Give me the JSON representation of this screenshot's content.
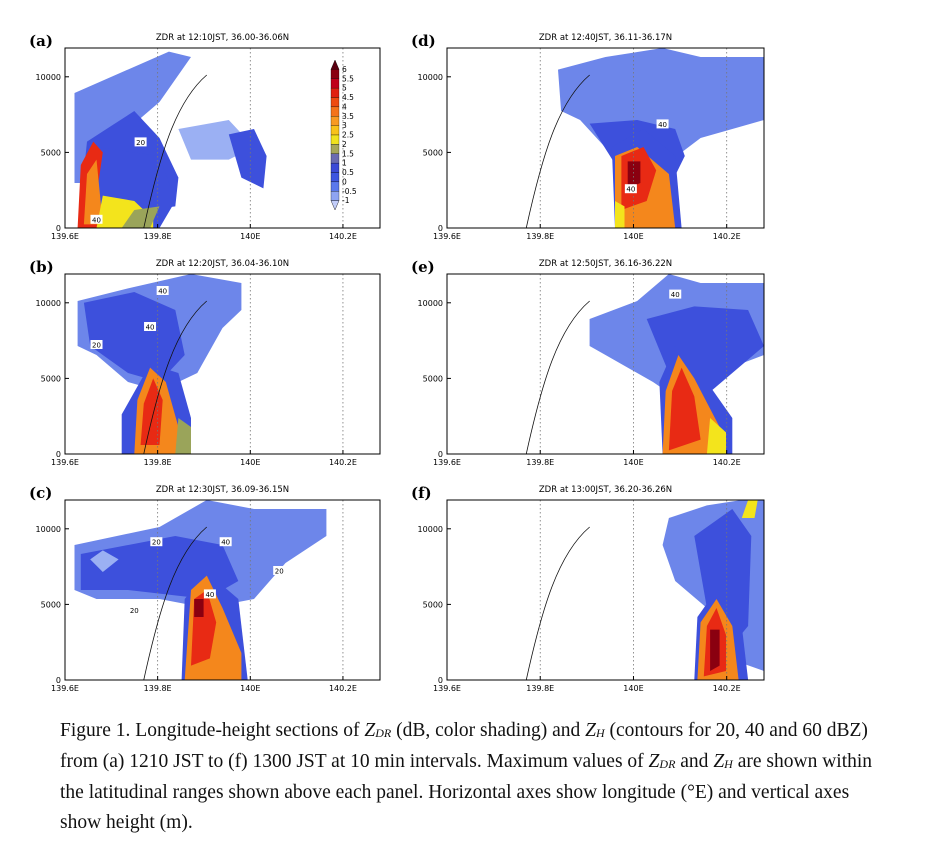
{
  "figure": {
    "panels": [
      {
        "label": "(a)",
        "title": "ZDR at 12:10JST, 36.00-36.06N",
        "contour_labels": [
          "20",
          "40"
        ]
      },
      {
        "label": "(b)",
        "title": "ZDR at 12:20JST, 36.04-36.10N",
        "contour_labels": [
          "40",
          "40",
          "20"
        ]
      },
      {
        "label": "(c)",
        "title": "ZDR at 12:30JST, 36.09-36.15N",
        "contour_labels": [
          "20",
          "40",
          "20",
          "20",
          "40"
        ]
      },
      {
        "label": "(d)",
        "title": "ZDR at 12:40JST, 36.11-36.17N",
        "contour_labels": [
          "40",
          "40"
        ]
      },
      {
        "label": "(e)",
        "title": "ZDR at 12:50JST, 36.16-36.22N",
        "contour_labels": [
          "40"
        ]
      },
      {
        "label": "(f)",
        "title": "ZDR at 13:00JST, 36.20-36.26N",
        "contour_labels": []
      }
    ],
    "x_ticks": [
      "139.6E",
      "139.8E",
      "140E",
      "140.2E"
    ],
    "y_ticks": [
      "0",
      "5000",
      "10000"
    ],
    "colorbar": {
      "labels": [
        "6",
        "5.5",
        "5",
        "4.5",
        "4",
        "3.5",
        "3",
        "2.5",
        "2",
        "1.5",
        "1",
        "0.5",
        "0",
        "-0.5",
        "-1"
      ],
      "colors": [
        "#5a0010",
        "#8a0010",
        "#c0001a",
        "#e02010",
        "#ee4a10",
        "#f4731a",
        "#f89a22",
        "#f8c21a",
        "#f0e21e",
        "#a6a65a",
        "#6b6bb0",
        "#3c4ad6",
        "#3d55e0",
        "#5a78ec",
        "#8fa4f2",
        "#c2cdfa"
      ]
    },
    "colors": {
      "weak": "#6d86ea",
      "mid": "#3d50dc",
      "deep": "#2a35c8",
      "pale": "#9bb0f3",
      "green": "#9aa45a",
      "yellow": "#f3e41c",
      "orange": "#f4871c",
      "red": "#e82a14",
      "darkred": "#8a0010"
    }
  },
  "caption": {
    "part1": "Figure 1. Longitude-height sections of ",
    "zdr_main": "Z",
    "zdr_sub": "DR",
    "part2": " (dB, color shading) and ",
    "zh_main": "Z",
    "zh_sub": "H",
    "part3": " (contours for 20, 40 and 60 dBZ) from (a) 1210 JST to (f) 1300 JST at 10 min intervals. Maximum values of ",
    "zdr2_main": "Z",
    "zdr2_sub": "DR",
    "part4": " and ",
    "zh2_main": "Z",
    "zh2_sub": "H",
    "part5": " are shown within the latitudinal ranges shown above each panel. Horizontal axes show longitude (°E) and vertical axes show height (m)."
  }
}
